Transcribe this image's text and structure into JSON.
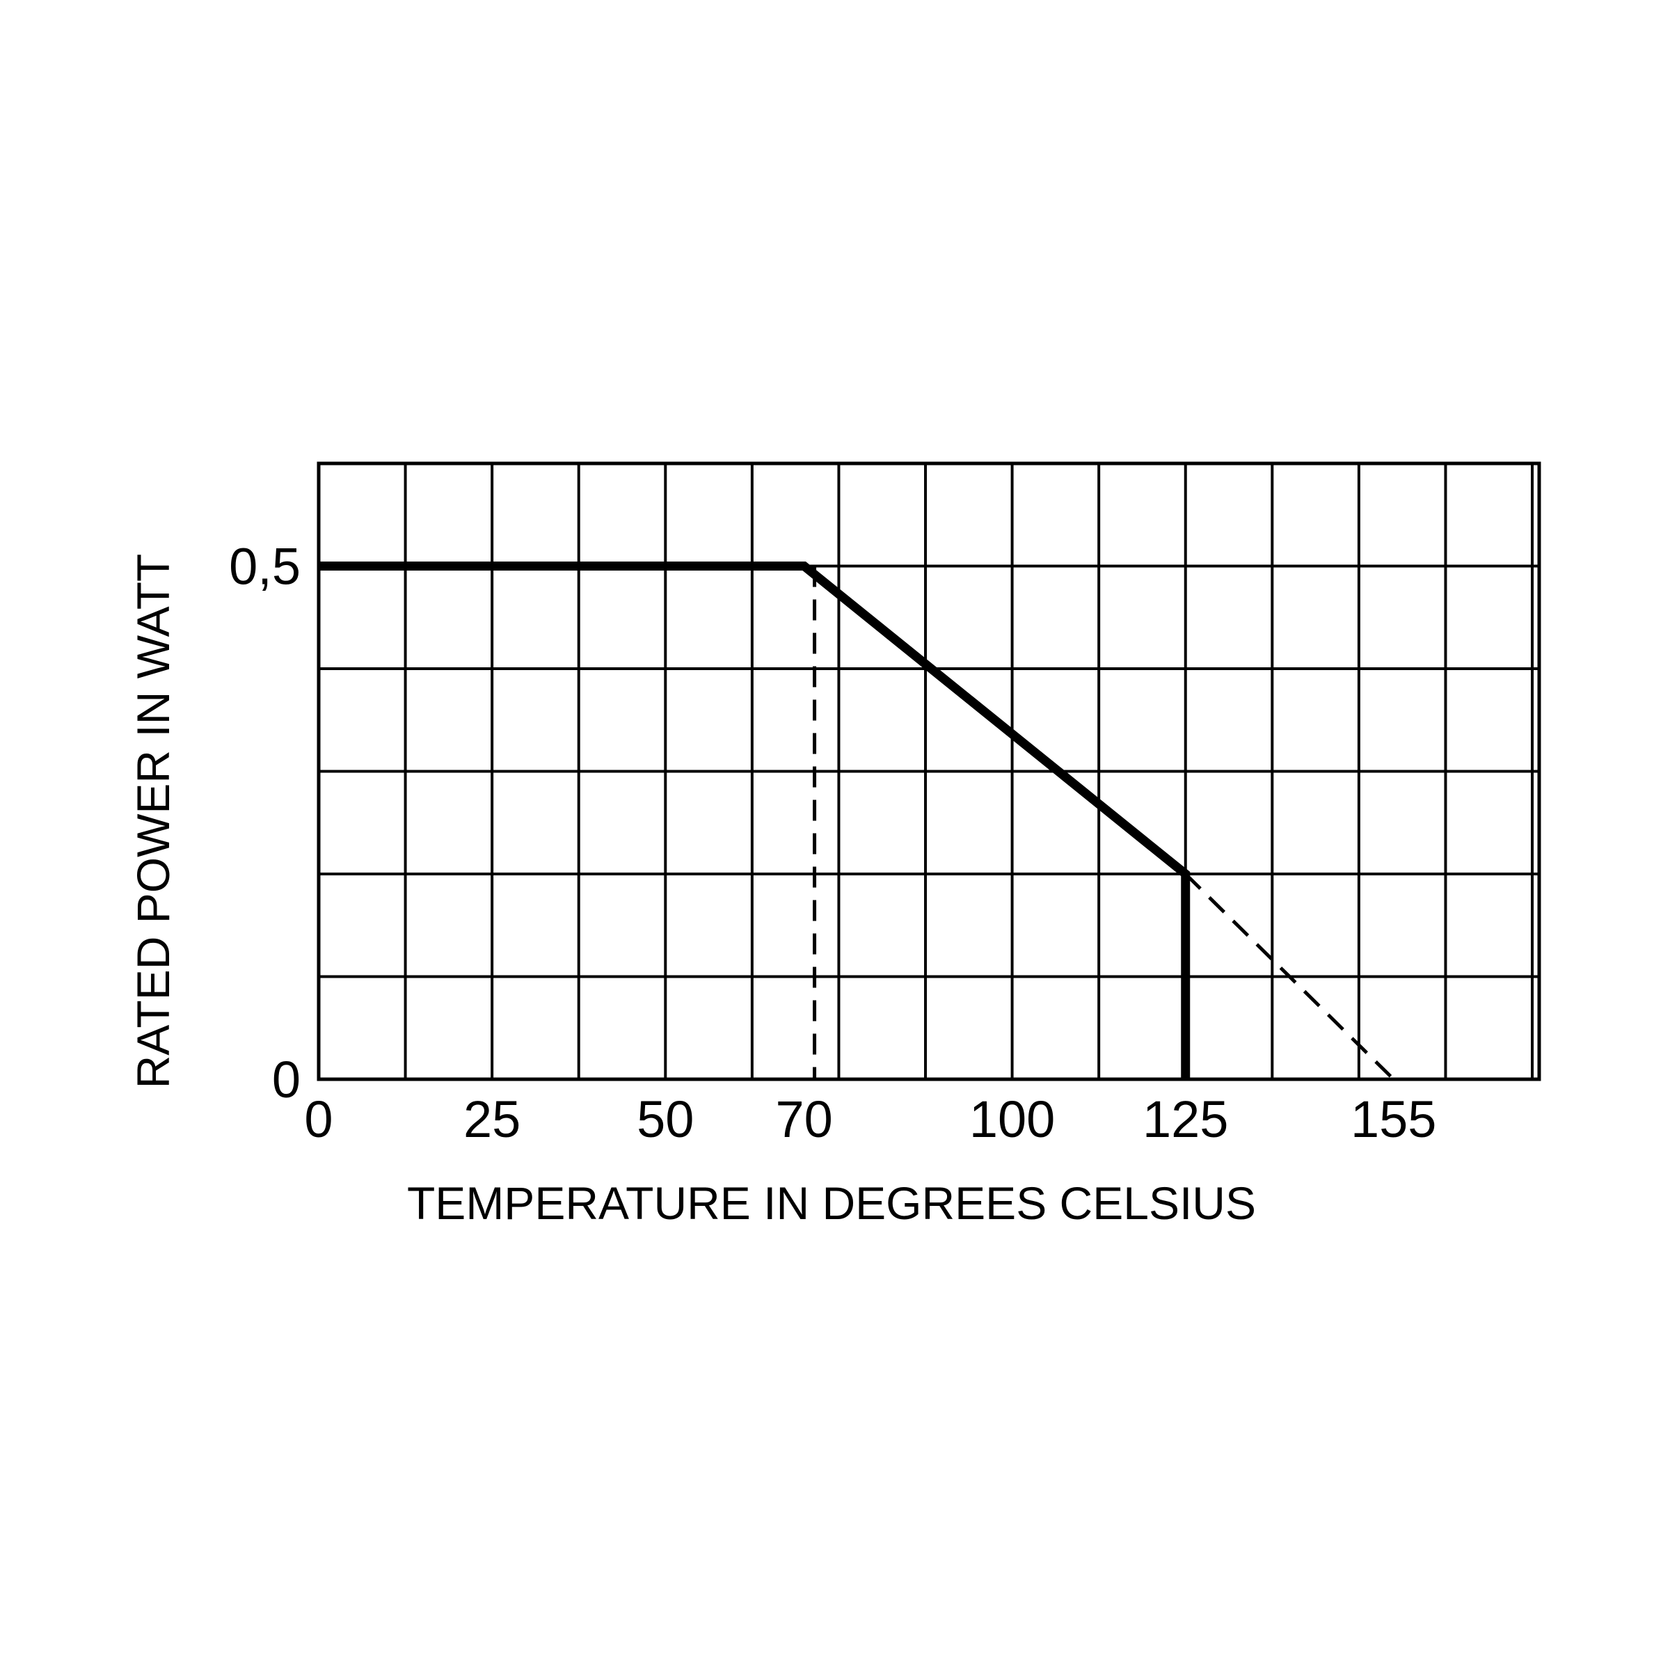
{
  "chart_data": {
    "type": "line",
    "title": "",
    "xlabel": "TEMPERATURE IN DEGREES CELSIUS",
    "ylabel": "RATED POWER IN WATT",
    "xlim": [
      0,
      176
    ],
    "ylim": [
      0,
      0.6
    ],
    "grid": true,
    "grid_x_step": 12.5,
    "grid_y_step": 0.1,
    "x_ticks": [
      {
        "value": 0,
        "label": "0"
      },
      {
        "value": 25,
        "label": "25"
      },
      {
        "value": 50,
        "label": "50"
      },
      {
        "value": 70,
        "label": "70"
      },
      {
        "value": 100,
        "label": "100"
      },
      {
        "value": 125,
        "label": "125"
      },
      {
        "value": 155,
        "label": "155"
      }
    ],
    "y_ticks": [
      {
        "value": 0,
        "label": "0"
      },
      {
        "value": 0.5,
        "label": "0,5"
      }
    ],
    "series": [
      {
        "style": "solid",
        "x": [
          0,
          70,
          125,
          125
        ],
        "y": [
          0.5,
          0.5,
          0.2,
          0
        ]
      },
      {
        "style": "dashed",
        "x": [
          125,
          155
        ],
        "y": [
          0.2,
          0
        ]
      },
      {
        "style": "dashed",
        "x": [
          71.5,
          71.5
        ],
        "y": [
          0.5,
          0
        ]
      }
    ],
    "colors": {
      "line": "#000000",
      "grid": "#000000",
      "background": "#ffffff"
    }
  }
}
